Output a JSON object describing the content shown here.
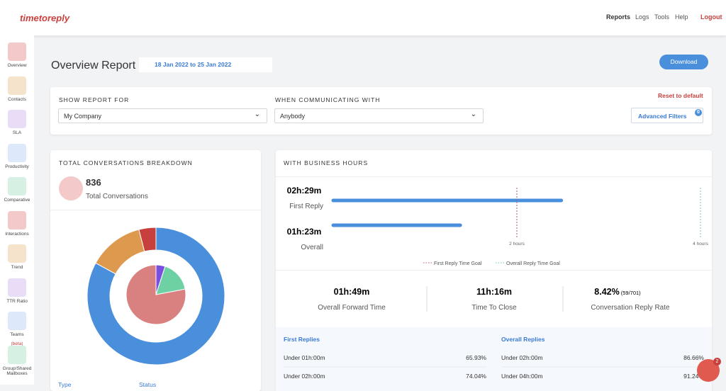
{
  "header": {
    "logo": "timetoreply",
    "nav": [
      "Reports",
      "Logs",
      "Tools",
      "Help"
    ],
    "logout": "Logout"
  },
  "sidebar": [
    {
      "label": "Overview",
      "color": "#f3c9c9"
    },
    {
      "label": "Contacts",
      "color": "#f6e3cc"
    },
    {
      "label": "SLA",
      "color": "#e8dcf7"
    },
    {
      "label": "Productivity",
      "color": "#dde8fb"
    },
    {
      "label": "Comparative",
      "color": "#d6f1e3"
    },
    {
      "label": "Interactions",
      "color": "#f3c9c9"
    },
    {
      "label": "Trend",
      "color": "#f6e3cc"
    },
    {
      "label": "TTR Ratio",
      "color": "#e8dcf7"
    },
    {
      "label": "Teams",
      "badge": "(beta)",
      "color": "#dde8fb"
    },
    {
      "label": "Group/Shared Mailboxes",
      "color": "#d6f1e3"
    }
  ],
  "page": {
    "title": "Overview Report",
    "date_range": "18 Jan 2022 to 25 Jan 2022",
    "download": "Download"
  },
  "filters": {
    "show_label": "SHOW REPORT FOR",
    "show_value": "My Company",
    "with_label": "WHEN COMMUNICATING WITH",
    "with_value": "Anybody",
    "reset": "Reset to default",
    "advanced": "Advanced Filters",
    "advanced_count": 0
  },
  "breakdown": {
    "title": "TOTAL CONVERSATIONS BREAKDOWN",
    "total": 836,
    "total_label": "Total Conversations",
    "outer": {
      "values": [
        83,
        13,
        4
      ],
      "colors": [
        "#4a8fdc",
        "#dd9a4e",
        "#c8403e"
      ]
    },
    "inner": {
      "values": [
        5,
        17,
        78
      ],
      "colors": [
        "#7a4fe0",
        "#6ed1a4",
        "#d98181"
      ]
    },
    "legend": [
      "Type",
      "Status"
    ]
  },
  "business": {
    "title": "WITH BUSINESS HOURS",
    "chart_data": {
      "type": "bar",
      "orientation": "horizontal",
      "categories": [
        "First Reply",
        "Overall"
      ],
      "values": [
        149,
        83
      ],
      "value_labels": [
        "02h:29m",
        "01h:23m"
      ],
      "color": "#4a8fdc",
      "xlim": [
        0,
        240
      ],
      "xticks": [
        {
          "value": 120,
          "label": "2 hours"
        },
        {
          "value": 240,
          "label": "4 hours"
        }
      ],
      "goals": [
        {
          "name": "First Reply Time Goal",
          "value": 120,
          "color": "#c0506a"
        },
        {
          "name": "Overall Reply Time Goal",
          "value": 240,
          "color": "#6cc8c8"
        }
      ]
    },
    "stats": [
      {
        "value": "01h:49m",
        "label": "Overall Forward Time"
      },
      {
        "value": "11h:16m",
        "label": "Time To Close"
      },
      {
        "value": "8.42%",
        "detail": "(59/701)",
        "label": "Conversation Reply Rate"
      }
    ],
    "first_replies": {
      "title": "First Replies",
      "rows": [
        [
          "Under 01h:00m",
          "65.93%"
        ],
        [
          "Under 02h:00m",
          "74.04%"
        ]
      ]
    },
    "overall_replies": {
      "title": "Overall Replies",
      "rows": [
        [
          "Under 02h:00m",
          "86.66%"
        ],
        [
          "Under 04h:00m",
          "91.24%"
        ]
      ]
    }
  },
  "chat_badge": "2"
}
